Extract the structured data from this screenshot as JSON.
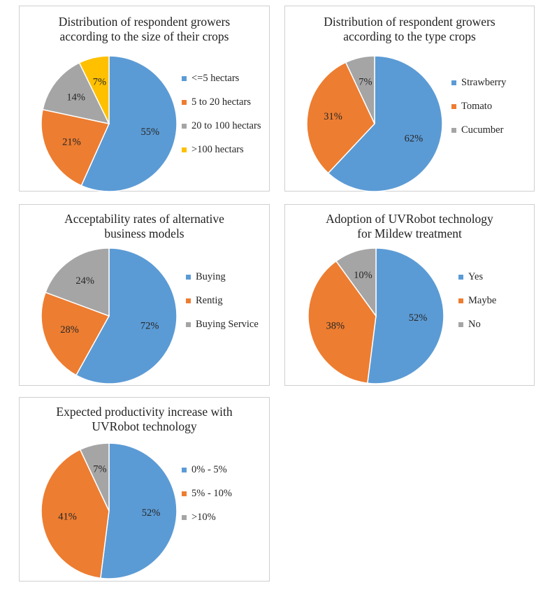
{
  "chart_data": [
    {
      "type": "pie",
      "title": [
        "Distribution of respondent growers",
        "according to the size of their crops"
      ],
      "categories": [
        "<=5 hectars",
        "5 to 20 hectars",
        "20 to 100 hectars",
        ">100 hectars"
      ],
      "values": [
        55,
        21,
        14,
        7
      ],
      "labels": [
        "55%",
        "21%",
        "14%",
        "7%"
      ],
      "colors": [
        "#5b9bd5",
        "#ed7d31",
        "#a5a5a5",
        "#ffc000"
      ],
      "legend": "right"
    },
    {
      "type": "pie",
      "title": [
        "Distribution of respondent growers",
        "according to the type crops"
      ],
      "categories": [
        "Strawberry",
        "Tomato",
        "Cucumber"
      ],
      "values": [
        62,
        31,
        7
      ],
      "labels": [
        "62%",
        "31%",
        "7%"
      ],
      "colors": [
        "#5b9bd5",
        "#ed7d31",
        "#a5a5a5"
      ],
      "legend": "right"
    },
    {
      "type": "pie",
      "title": [
        "Acceptability rates of alternative",
        "business models"
      ],
      "categories": [
        "Buying",
        "Rentig",
        "Buying Service"
      ],
      "values": [
        72,
        28,
        24
      ],
      "labels": [
        "72%",
        "28%",
        "24%"
      ],
      "colors": [
        "#5b9bd5",
        "#ed7d31",
        "#a5a5a5"
      ],
      "legend": "right"
    },
    {
      "type": "pie",
      "title": [
        "Adoption of UVRobot technology",
        "for Mildew treatment"
      ],
      "categories": [
        "Yes",
        "Maybe",
        "No"
      ],
      "values": [
        52,
        38,
        10
      ],
      "labels": [
        "52%",
        "38%",
        "10%"
      ],
      "colors": [
        "#5b9bd5",
        "#ed7d31",
        "#a5a5a5"
      ],
      "legend": "right"
    },
    {
      "type": "pie",
      "title": [
        "Expected productivity increase with",
        "UVRobot technology"
      ],
      "categories": [
        "0% - 5%",
        "5% - 10%",
        ">10%"
      ],
      "values": [
        52,
        41,
        7
      ],
      "labels": [
        "52%",
        "41%",
        "7%"
      ],
      "colors": [
        "#5b9bd5",
        "#ed7d31",
        "#a5a5a5"
      ],
      "legend": "right"
    }
  ]
}
